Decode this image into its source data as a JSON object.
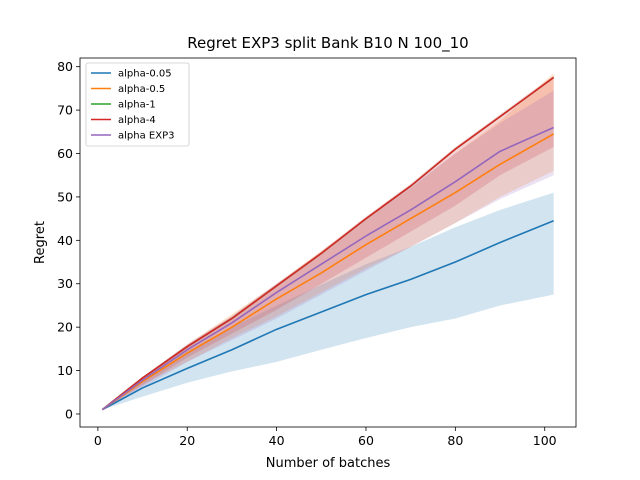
{
  "chart_data": {
    "type": "line",
    "title": "Regret EXP3 split Bank B10 N 100_10",
    "xlabel": "Number of batches",
    "ylabel": "Regret",
    "xlim": [
      -4,
      107
    ],
    "ylim": [
      -3,
      82
    ],
    "xticks": [
      0,
      20,
      40,
      60,
      80,
      100
    ],
    "yticks": [
      0,
      10,
      20,
      30,
      40,
      50,
      60,
      70,
      80
    ],
    "grid": false,
    "legend_position": "top-left",
    "x": [
      1,
      10,
      20,
      30,
      40,
      50,
      60,
      70,
      80,
      90,
      102
    ],
    "series": [
      {
        "name": "alpha-0.05",
        "color": "#1f77b4",
        "values": [
          1.0,
          6.0,
          10.5,
          14.8,
          19.5,
          23.5,
          27.5,
          31.0,
          35.0,
          39.5,
          44.5
        ],
        "band_lower": [
          1.0,
          4.0,
          7.2,
          9.8,
          12.0,
          14.8,
          17.5,
          20.0,
          22.0,
          25.0,
          27.5
        ],
        "band_upper": [
          1.0,
          8.0,
          14.5,
          20.0,
          25.0,
          29.8,
          34.5,
          38.5,
          43.0,
          47.0,
          51.0
        ]
      },
      {
        "name": "alpha-0.5",
        "color": "#ff7f0e",
        "values": [
          1.0,
          7.5,
          14.0,
          20.0,
          26.5,
          32.5,
          39.0,
          45.0,
          51.0,
          57.5,
          64.5
        ],
        "band_lower": [
          1.0,
          6.8,
          12.0,
          17.5,
          22.5,
          28.0,
          33.5,
          38.5,
          44.0,
          50.0,
          56.0
        ],
        "band_upper": [
          1.0,
          8.5,
          16.0,
          23.0,
          30.0,
          37.5,
          45.0,
          52.0,
          60.0,
          67.5,
          78.5
        ]
      },
      {
        "name": "alpha-1",
        "color": "#2ca02c",
        "values": [
          1.0,
          8.3,
          15.5,
          22.0,
          29.5,
          37.0,
          45.0,
          52.5,
          61.0,
          68.5,
          77.5
        ],
        "band_lower": [
          1.0,
          8.3,
          15.5,
          22.0,
          29.5,
          37.0,
          45.0,
          52.5,
          61.0,
          68.5,
          77.5
        ],
        "band_upper": [
          1.0,
          8.3,
          15.5,
          22.0,
          29.5,
          37.0,
          45.0,
          52.5,
          61.0,
          68.5,
          77.5
        ]
      },
      {
        "name": "alpha-4",
        "color": "#d62728",
        "values": [
          1.0,
          8.3,
          15.5,
          22.0,
          29.5,
          37.0,
          45.0,
          52.5,
          61.0,
          68.5,
          77.5
        ],
        "band_lower": [
          1.0,
          6.5,
          13.0,
          18.5,
          24.0,
          30.0,
          36.0,
          42.0,
          48.0,
          55.0,
          61.5
        ],
        "band_upper": [
          1.0,
          8.5,
          16.0,
          22.5,
          30.0,
          37.5,
          45.5,
          53.0,
          61.5,
          69.0,
          78.0
        ]
      },
      {
        "name": "alpha EXP3",
        "color": "#9467bd",
        "values": [
          1.0,
          7.8,
          14.8,
          21.0,
          28.0,
          34.5,
          41.0,
          47.0,
          53.5,
          60.5,
          66.0
        ],
        "band_lower": [
          1.0,
          6.0,
          12.0,
          17.0,
          22.0,
          27.5,
          33.0,
          38.5,
          44.0,
          49.5,
          55.0
        ],
        "band_upper": [
          1.0,
          8.5,
          16.0,
          22.5,
          30.0,
          37.0,
          45.0,
          52.5,
          60.0,
          67.0,
          74.5
        ]
      }
    ]
  }
}
